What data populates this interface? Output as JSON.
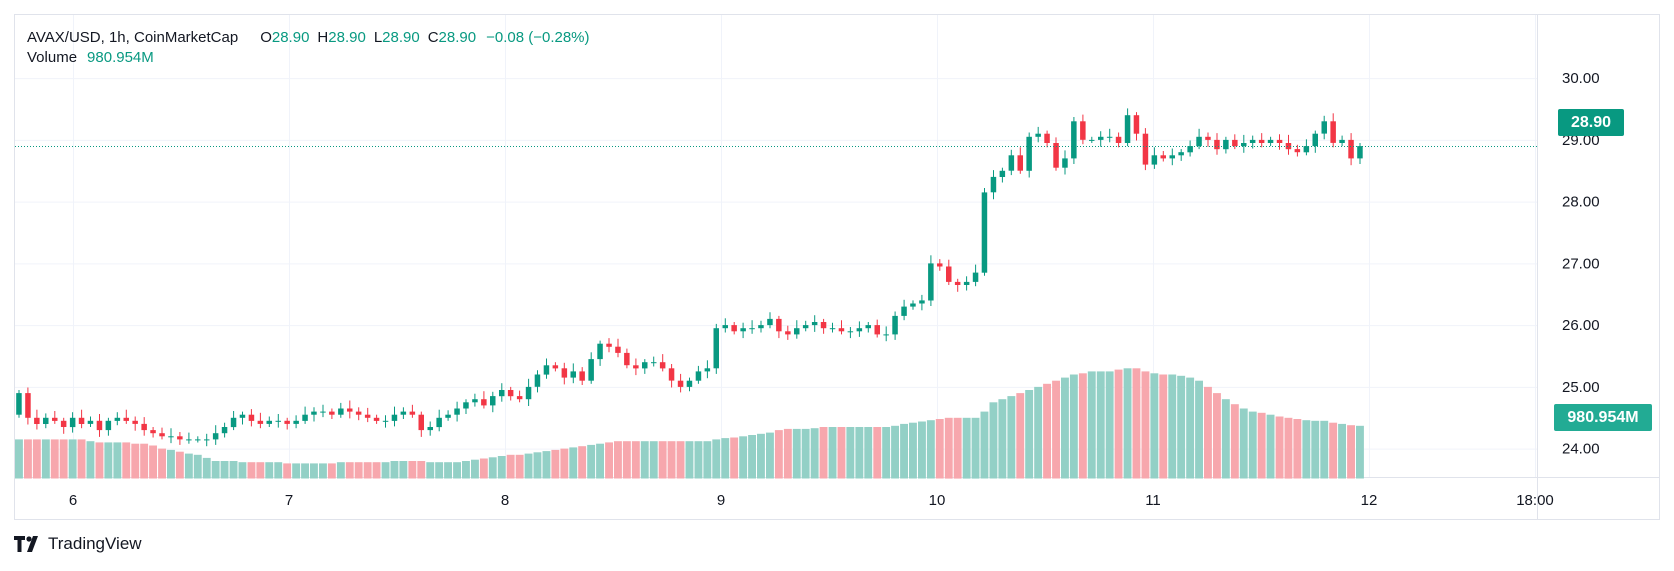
{
  "legend": {
    "symbol": "AVAX/USD, 1h, CoinMarketCap",
    "open_label": "O",
    "open": "28.90",
    "high_label": "H",
    "high": "28.90",
    "low_label": "L",
    "low": "28.90",
    "close_label": "C",
    "close": "28.90",
    "change": "−0.08 (−0.28%)",
    "volume_label": "Volume",
    "volume": "980.954M"
  },
  "price_tag": "28.90",
  "volume_tag": "980.954M",
  "brand": "TradingView",
  "colors": {
    "up": "#089981",
    "down": "#f23645",
    "volume_up": "#93d0c6",
    "volume_down": "#f7a7ad",
    "grid": "#f0f3fa"
  },
  "chart_data": {
    "type": "candlestick",
    "interval": "1h",
    "y_axis": {
      "ticks": [
        "30.00",
        "29.00",
        "28.00",
        "27.00",
        "26.00",
        "25.00",
        "24.00"
      ],
      "range": [
        23.5,
        30.5
      ],
      "position": "right"
    },
    "x_axis": {
      "ticks": [
        "6",
        "7",
        "8",
        "9",
        "10",
        "11",
        "12",
        "18:00"
      ]
    },
    "last_price": 28.9,
    "grid": true,
    "series_close": [
      24.9,
      24.5,
      24.4,
      24.5,
      24.45,
      24.35,
      24.5,
      24.4,
      24.45,
      24.3,
      24.45,
      24.5,
      24.45,
      24.4,
      24.3,
      24.25,
      24.2,
      24.2,
      24.15,
      24.15,
      24.15,
      24.15,
      24.25,
      24.35,
      24.5,
      24.55,
      24.45,
      24.4,
      24.45,
      24.45,
      24.4,
      24.45,
      24.55,
      24.6,
      24.6,
      24.55,
      24.65,
      24.6,
      24.55,
      24.5,
      24.45,
      24.45,
      24.55,
      24.6,
      24.55,
      24.3,
      24.35,
      24.5,
      24.55,
      24.65,
      24.75,
      24.8,
      24.7,
      24.85,
      24.95,
      24.85,
      24.8,
      25.0,
      25.2,
      25.35,
      25.3,
      25.15,
      25.25,
      25.1,
      25.45,
      25.7,
      25.65,
      25.55,
      25.35,
      25.3,
      25.4,
      25.4,
      25.3,
      25.1,
      25.0,
      25.1,
      25.25,
      25.3,
      25.95,
      26.0,
      25.9,
      25.95,
      25.95,
      26.0,
      26.1,
      25.9,
      25.85,
      25.95,
      26.0,
      26.05,
      25.95,
      25.95,
      25.9,
      25.9,
      25.95,
      26.0,
      25.85,
      25.85,
      26.15,
      26.3,
      26.35,
      26.4,
      27.0,
      26.95,
      26.7,
      26.65,
      26.7,
      26.85,
      28.15,
      28.4,
      28.5,
      28.75,
      28.5,
      29.05,
      29.1,
      28.95,
      28.55,
      28.7,
      29.3,
      29.0,
      29.0,
      29.05,
      29.05,
      28.95,
      29.4,
      29.1,
      28.6,
      28.75,
      28.7,
      28.75,
      28.8,
      28.9,
      29.05,
      29.0,
      28.85,
      29.0,
      28.9,
      28.95,
      29.0,
      28.95,
      29.0,
      28.95,
      28.85,
      28.8,
      28.9,
      29.1,
      29.3,
      28.95,
      29.0,
      28.7,
      28.9
    ],
    "series_volume": [
      24.15,
      24.15,
      24.15,
      24.15,
      24.15,
      24.15,
      24.15,
      24.15,
      24.12,
      24.1,
      24.1,
      24.1,
      24.1,
      24.08,
      24.08,
      24.05,
      24.0,
      23.98,
      23.95,
      23.92,
      23.9,
      23.85,
      23.8,
      23.8,
      23.8,
      23.78,
      23.78,
      23.78,
      23.78,
      23.78,
      23.76,
      23.76,
      23.76,
      23.76,
      23.76,
      23.76,
      23.78,
      23.78,
      23.78,
      23.78,
      23.78,
      23.78,
      23.8,
      23.8,
      23.8,
      23.8,
      23.78,
      23.78,
      23.78,
      23.78,
      23.8,
      23.82,
      23.84,
      23.86,
      23.88,
      23.9,
      23.9,
      23.92,
      23.94,
      23.96,
      23.98,
      24.0,
      24.02,
      24.04,
      24.06,
      24.08,
      24.1,
      24.12,
      24.12,
      24.12,
      24.12,
      24.12,
      24.12,
      24.12,
      24.12,
      24.12,
      24.12,
      24.12,
      24.15,
      24.17,
      24.18,
      24.2,
      24.22,
      24.24,
      24.26,
      24.3,
      24.32,
      24.32,
      24.32,
      24.33,
      24.35,
      24.35,
      24.35,
      24.35,
      24.35,
      24.35,
      24.35,
      24.35,
      24.37,
      24.4,
      24.42,
      24.44,
      24.46,
      24.48,
      24.5,
      24.5,
      24.5,
      24.5,
      24.6,
      24.75,
      24.8,
      24.85,
      24.9,
      24.95,
      25.0,
      25.05,
      25.1,
      25.15,
      25.2,
      25.22,
      25.25,
      25.25,
      25.25,
      25.28,
      25.3,
      25.3,
      25.25,
      25.22,
      25.2,
      25.2,
      25.18,
      25.15,
      25.1,
      25.0,
      24.9,
      24.8,
      24.72,
      24.65,
      24.6,
      24.58,
      24.55,
      24.52,
      24.5,
      24.48,
      24.46,
      24.45,
      24.45,
      24.42,
      24.4,
      24.38,
      24.37
    ]
  }
}
